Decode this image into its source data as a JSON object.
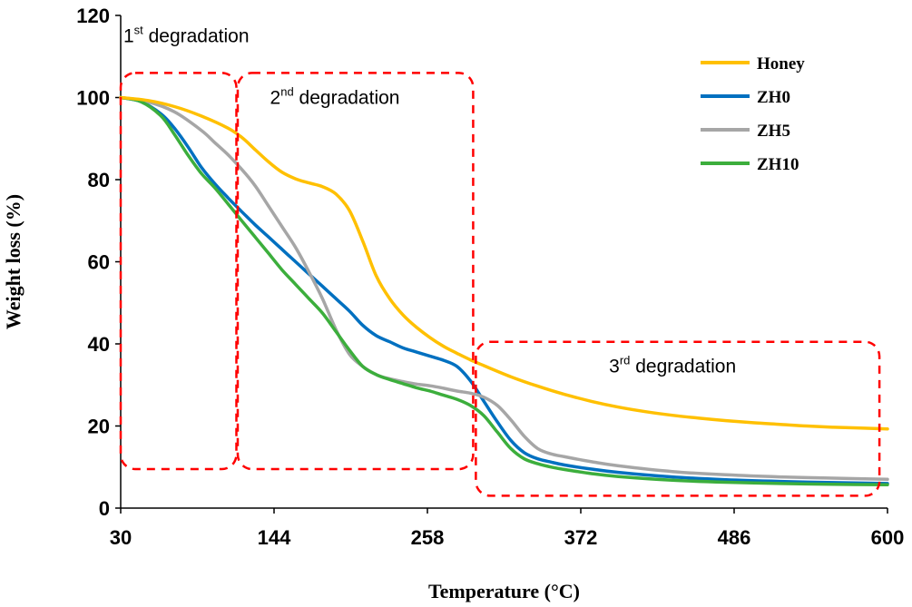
{
  "chart_data": {
    "type": "line",
    "xlabel": "Temperature (°C)",
    "ylabel": "Weight loss (%)",
    "xlim": [
      30,
      600
    ],
    "ylim": [
      0,
      120
    ],
    "xticks": [
      "30",
      "144",
      "258",
      "372",
      "486",
      "600"
    ],
    "yticks": [
      "0",
      "20",
      "40",
      "60",
      "80",
      "100",
      "120"
    ],
    "legend_position": "top-right",
    "series": [
      {
        "name": "Honey",
        "color": "#FFC000",
        "x": [
          30,
          50,
          70,
          90,
          110,
          120,
          130,
          140,
          150,
          160,
          170,
          180,
          190,
          200,
          210,
          220,
          230,
          240,
          250,
          260,
          270,
          280,
          290,
          300,
          320,
          340,
          360,
          380,
          400,
          420,
          440,
          460,
          480,
          500,
          520,
          540,
          560,
          580,
          600
        ],
        "values": [
          100,
          99.3,
          97.8,
          95.5,
          92.5,
          90.3,
          87.3,
          84.3,
          81.8,
          80.2,
          79.2,
          78.3,
          76.5,
          72.5,
          65.0,
          56.5,
          51.0,
          47.0,
          44.0,
          41.5,
          39.4,
          37.7,
          36.1,
          34.7,
          32.0,
          29.7,
          27.7,
          26.0,
          24.6,
          23.5,
          22.6,
          21.9,
          21.3,
          20.8,
          20.4,
          20.0,
          19.7,
          19.5,
          19.3
        ]
      },
      {
        "name": "ZH0",
        "color": "#0070C0",
        "x": [
          30,
          45,
          60,
          70,
          80,
          90,
          100,
          110,
          120,
          130,
          140,
          150,
          160,
          170,
          180,
          190,
          200,
          210,
          220,
          230,
          240,
          250,
          260,
          270,
          280,
          290,
          300,
          310,
          320,
          330,
          340,
          350,
          360,
          380,
          400,
          440,
          480,
          520,
          560,
          600
        ],
        "values": [
          100,
          99,
          96,
          92.5,
          88.0,
          83.0,
          79.0,
          75.5,
          72.2,
          69.0,
          66.0,
          63.0,
          60.0,
          57.0,
          54.0,
          51.0,
          48.0,
          44.5,
          42.0,
          40.5,
          39.0,
          38.0,
          37.0,
          36.0,
          34.5,
          31.0,
          26.0,
          21.0,
          16.5,
          13.5,
          12.0,
          11.2,
          10.5,
          9.5,
          8.7,
          7.6,
          6.9,
          6.5,
          6.2,
          6.0
        ]
      },
      {
        "name": "ZH5",
        "color": "#A6A6A6",
        "x": [
          30,
          50,
          70,
          90,
          100,
          110,
          120,
          130,
          140,
          150,
          160,
          170,
          180,
          190,
          200,
          210,
          220,
          230,
          240,
          250,
          260,
          270,
          280,
          290,
          300,
          310,
          320,
          330,
          340,
          350,
          360,
          380,
          400,
          440,
          480,
          520,
          560,
          600
        ],
        "values": [
          100,
          99.0,
          96.5,
          92.0,
          89.0,
          86.0,
          82.5,
          78.5,
          73.5,
          68.5,
          63.5,
          57.5,
          51.0,
          43.5,
          37.5,
          34.5,
          32.5,
          31.5,
          30.8,
          30.2,
          29.8,
          29.2,
          28.5,
          28.0,
          27.0,
          25.0,
          21.5,
          17.5,
          14.5,
          13.2,
          12.5,
          11.3,
          10.3,
          8.9,
          8.1,
          7.6,
          7.3,
          7.0
        ]
      },
      {
        "name": "ZH10",
        "color": "#3CAE3C",
        "x": [
          30,
          45,
          60,
          70,
          80,
          90,
          100,
          110,
          120,
          130,
          140,
          150,
          160,
          170,
          180,
          190,
          200,
          210,
          220,
          230,
          240,
          250,
          260,
          270,
          280,
          290,
          300,
          310,
          320,
          330,
          340,
          350,
          360,
          380,
          400,
          440,
          480,
          520,
          560,
          600
        ],
        "values": [
          100,
          99.0,
          95.5,
          91.0,
          86.0,
          81.5,
          78.0,
          74.0,
          70.0,
          66.0,
          62.0,
          58.0,
          54.5,
          51.0,
          47.5,
          43.0,
          38.5,
          34.5,
          32.5,
          31.3,
          30.3,
          29.3,
          28.5,
          27.5,
          26.5,
          25.0,
          22.5,
          18.5,
          14.5,
          12.0,
          10.8,
          10.0,
          9.4,
          8.4,
          7.7,
          6.8,
          6.3,
          6.0,
          5.8,
          5.7
        ]
      }
    ],
    "annotations": [
      {
        "id": "first",
        "base": "1",
        "sup": "st",
        "text": " degradation",
        "label_at": [
          32,
          113.5
        ],
        "box": {
          "x": [
            30,
            116
          ],
          "y": [
            9.5,
            106
          ]
        }
      },
      {
        "id": "second",
        "base": "2",
        "sup": "nd",
        "text": " degradation",
        "label_at": [
          141,
          98.5
        ],
        "box": {
          "x": [
            117,
            292
          ],
          "y": [
            9.5,
            106
          ]
        }
      },
      {
        "id": "third",
        "base": "3",
        "sup": "rd",
        "text": " degradation",
        "label_at": [
          393,
          33
        ],
        "box": {
          "x": [
            294,
            594
          ],
          "y": [
            3,
            40.5
          ]
        }
      }
    ]
  }
}
